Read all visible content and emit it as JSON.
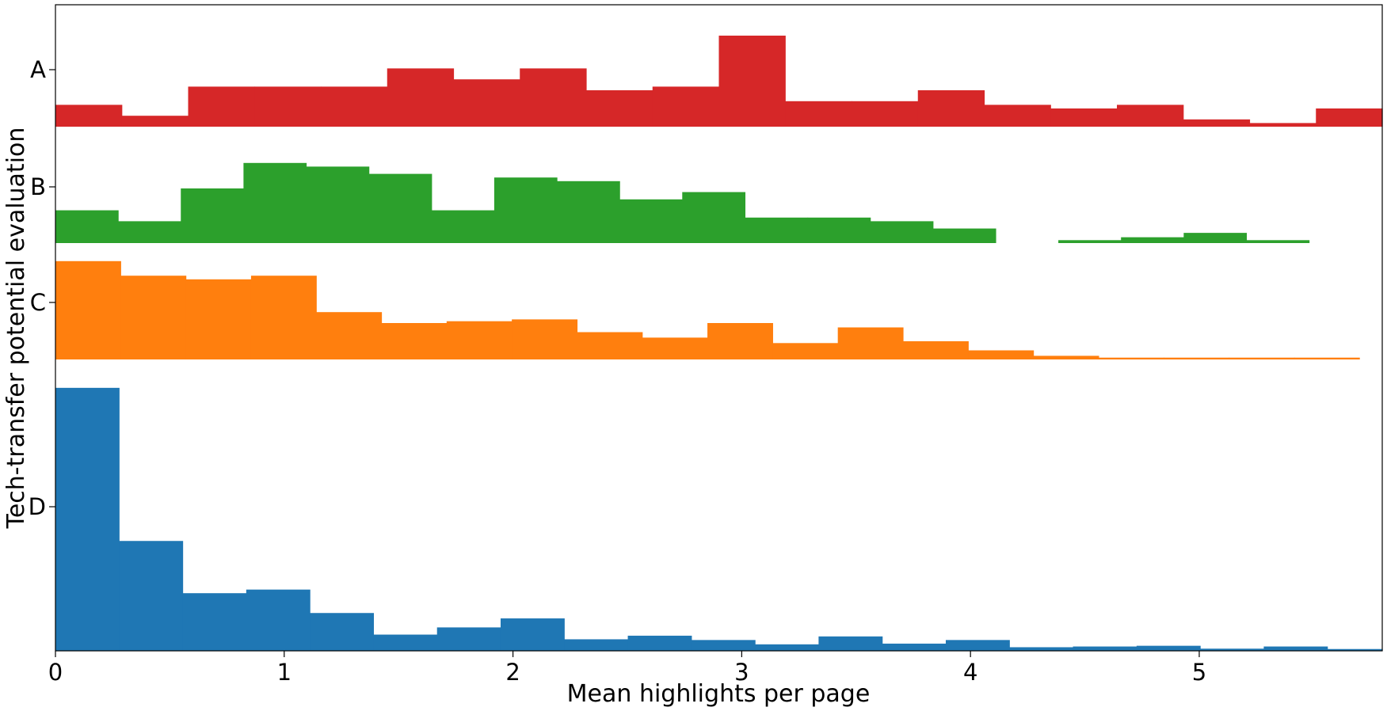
{
  "chart_data": {
    "type": "histogram-ridgeline",
    "title": "",
    "xlabel": "Mean highlights per page",
    "ylabel": "Tech-transfer potential evaluation",
    "xlim": [
      0,
      5.8
    ],
    "x_ticks": [
      "0",
      "1",
      "2",
      "3",
      "4",
      "5"
    ],
    "y_ticks": [
      "A",
      "B",
      "C",
      "D"
    ],
    "grid": false,
    "legend": "none",
    "series": [
      {
        "category": "A",
        "color": "#d62728",
        "bin_start": 0,
        "bin_width": 0.29,
        "values": [
          0.6,
          0.3,
          1.1,
          1.1,
          1.1,
          1.6,
          1.3,
          1.6,
          1.0,
          1.1,
          2.5,
          0.7,
          0.7,
          1.0,
          0.6,
          0.5,
          0.6,
          0.2,
          0.1,
          0.5
        ]
      },
      {
        "category": "B",
        "color": "#2ca02c",
        "bin_start": 0,
        "bin_width": 0.274,
        "values": [
          0.9,
          0.6,
          1.5,
          2.2,
          2.1,
          1.9,
          0.9,
          1.8,
          1.7,
          1.2,
          1.4,
          0.7,
          0.7,
          0.6,
          0.4,
          0,
          0.08,
          0.16,
          0.28,
          0.08
        ]
      },
      {
        "category": "C",
        "color": "#ff7f0e",
        "bin_start": 0,
        "bin_width": 0.285,
        "values": [
          2.7,
          2.3,
          2.2,
          2.3,
          1.3,
          1.0,
          1.05,
          1.1,
          0.75,
          0.6,
          1.0,
          0.45,
          0.88,
          0.5,
          0.25,
          0.1,
          0.05,
          0.05,
          0.05,
          0.05
        ]
      },
      {
        "category": "D",
        "color": "#1f77b4",
        "bin_start": 0,
        "bin_width": 0.278,
        "values": [
          7.3,
          3.05,
          1.6,
          1.7,
          1.05,
          0.45,
          0.65,
          0.9,
          0.32,
          0.42,
          0.3,
          0.18,
          0.4,
          0.2,
          0.3,
          0.1,
          0.12,
          0.14,
          0.06,
          0.12,
          0.05
        ]
      }
    ]
  }
}
